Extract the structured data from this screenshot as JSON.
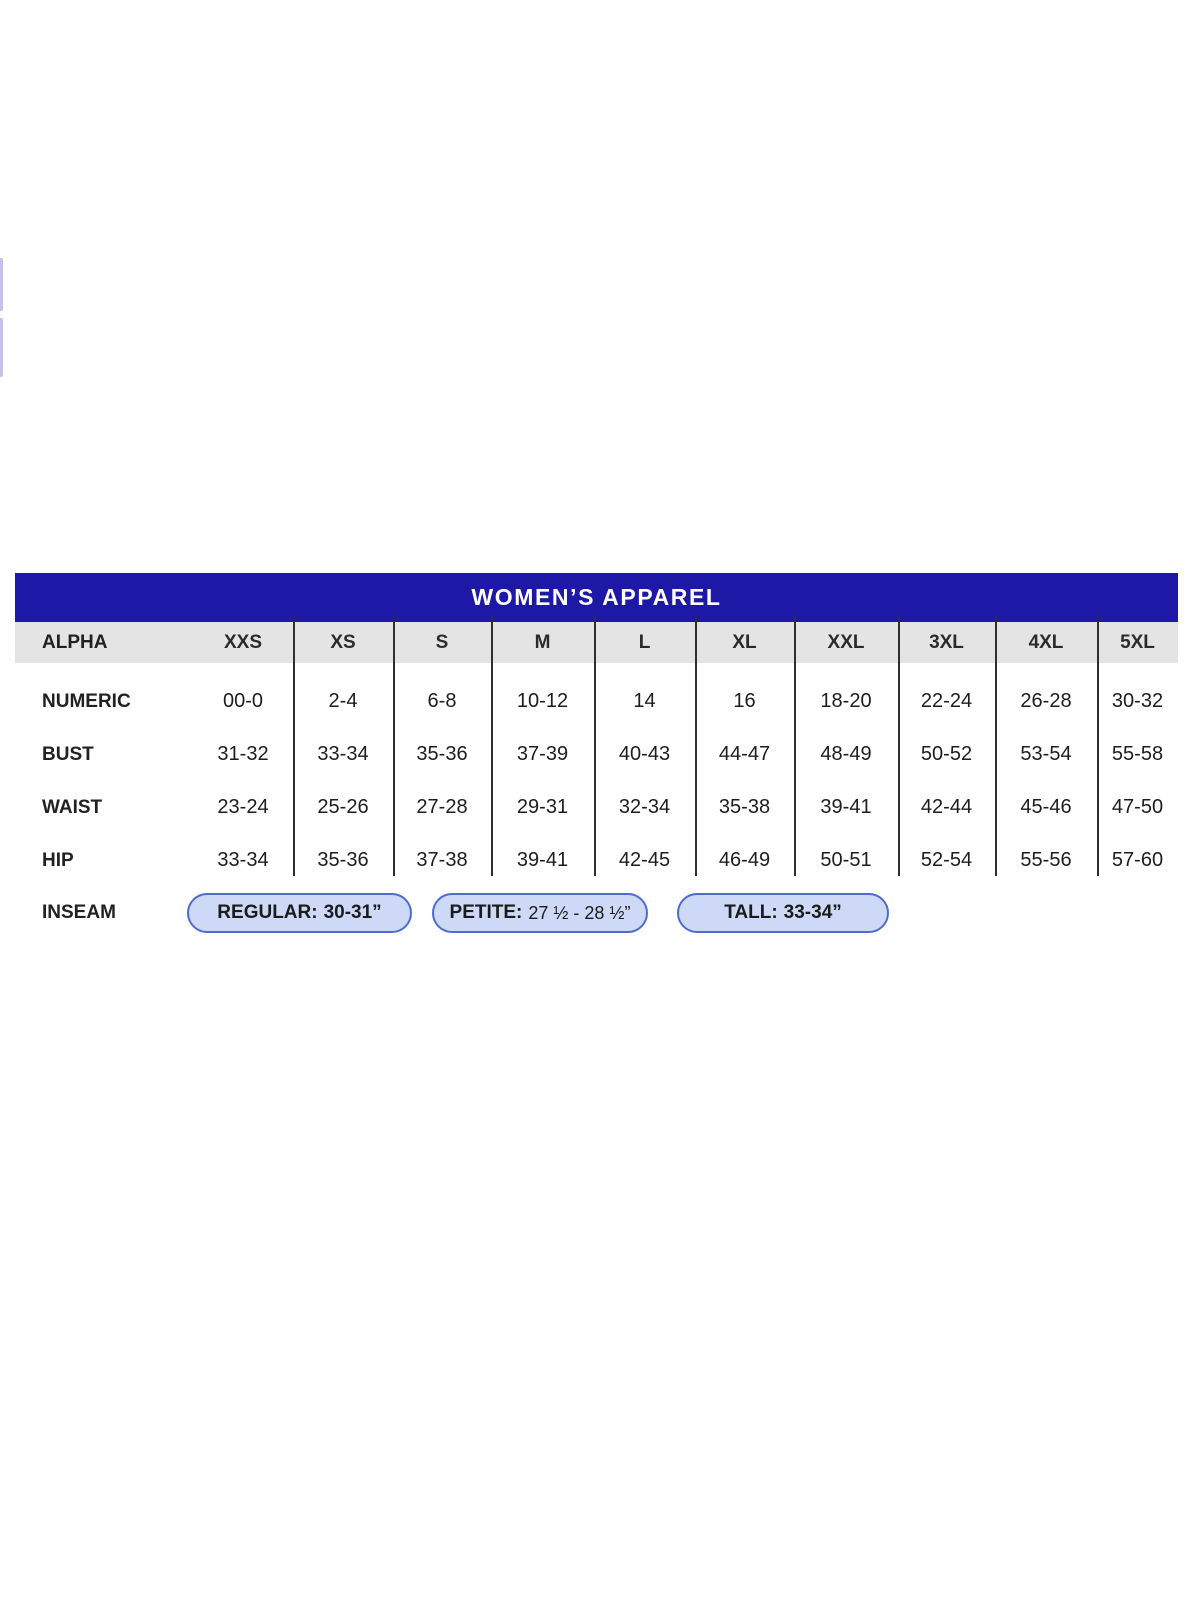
{
  "size_chart": {
    "title": "WOMEN’S APPAREL",
    "title_bar_color": "#1e18a6",
    "header_row_color": "#e4e4e4",
    "alpha_label": "ALPHA",
    "size_columns": [
      "XXS",
      "XS",
      "S",
      "M",
      "L",
      "XL",
      "XXL",
      "3XL",
      "4XL",
      "5XL"
    ],
    "rows": [
      {
        "label": "NUMERIC",
        "values": [
          "00-0",
          "2-4",
          "6-8",
          "10-12",
          "14",
          "16",
          "18-20",
          "22-24",
          "26-28",
          "30-32"
        ]
      },
      {
        "label": "BUST",
        "values": [
          "31-32",
          "33-34",
          "35-36",
          "37-39",
          "40-43",
          "44-47",
          "48-49",
          "50-52",
          "53-54",
          "55-58"
        ]
      },
      {
        "label": "WAIST",
        "values": [
          "23-24",
          "25-26",
          "27-28",
          "29-31",
          "32-34",
          "35-38",
          "39-41",
          "42-44",
          "45-46",
          "47-50"
        ]
      },
      {
        "label": "HIP",
        "values": [
          "33-34",
          "35-36",
          "37-38",
          "39-41",
          "42-45",
          "46-49",
          "50-51",
          "52-54",
          "55-56",
          "57-60"
        ]
      }
    ],
    "inseam": {
      "label": "INSEAM",
      "pills": [
        {
          "name": "regular",
          "label": "REGULAR:",
          "value": "30-31”"
        },
        {
          "name": "petite",
          "label": "PETITE:",
          "value": "27 ½ - 28 ½”"
        },
        {
          "name": "tall",
          "label": "TALL:",
          "value": "33-34”"
        }
      ],
      "pill_fill_color": "#cdd9f7",
      "pill_border_color": "#4e6cce"
    }
  },
  "chart_data": {
    "type": "table",
    "title": "WOMEN’S APPAREL",
    "columns": [
      "ALPHA",
      "XXS",
      "XS",
      "S",
      "M",
      "L",
      "XL",
      "XXL",
      "3XL",
      "4XL",
      "5XL"
    ],
    "rows": [
      [
        "NUMERIC",
        "00-0",
        "2-4",
        "6-8",
        "10-12",
        "14",
        "16",
        "18-20",
        "22-24",
        "26-28",
        "30-32"
      ],
      [
        "BUST",
        "31-32",
        "33-34",
        "35-36",
        "37-39",
        "40-43",
        "44-47",
        "48-49",
        "50-52",
        "53-54",
        "55-58"
      ],
      [
        "WAIST",
        "23-24",
        "25-26",
        "27-28",
        "29-31",
        "32-34",
        "35-38",
        "39-41",
        "42-44",
        "45-46",
        "47-50"
      ],
      [
        "HIP",
        "33-34",
        "35-36",
        "37-38",
        "39-41",
        "42-45",
        "46-49",
        "50-51",
        "52-54",
        "55-56",
        "57-60"
      ],
      [
        "INSEAM",
        "REGULAR: 30-31”",
        "PETITE: 27 ½ - 28 ½”",
        "TALL: 33-34”"
      ]
    ],
    "layout": {
      "grid": "vertical dividers between size columns only",
      "legend_position": "none"
    }
  }
}
